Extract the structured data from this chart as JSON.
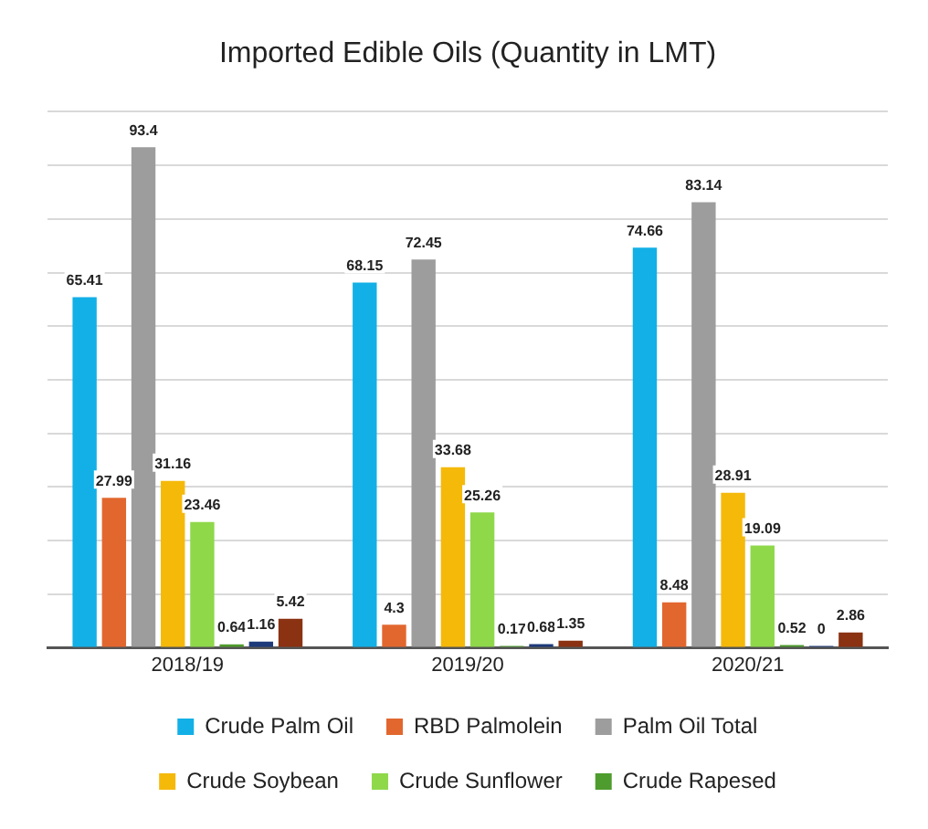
{
  "chart_data": {
    "type": "bar",
    "title": "Imported Edible Oils (Quantity in LMT)",
    "categories": [
      "2018/19",
      "2019/20",
      "2020/21"
    ],
    "series": [
      {
        "name": "Crude Palm Oil",
        "color": "#12b0e6",
        "values": [
          65.41,
          68.15,
          74.66
        ]
      },
      {
        "name": "RBD Palmolein",
        "color": "#e2672f",
        "values": [
          27.99,
          4.3,
          8.48
        ]
      },
      {
        "name": "Palm Oil Total",
        "color": "#9d9d9d",
        "values": [
          93.4,
          72.45,
          83.14
        ]
      },
      {
        "name": "Crude Soybean",
        "color": "#f5b90a",
        "values": [
          31.16,
          33.68,
          28.91
        ]
      },
      {
        "name": "Crude Sunflower",
        "color": "#8fd84a",
        "values": [
          23.46,
          25.26,
          19.09
        ]
      },
      {
        "name": "Crude Rapesed",
        "color": "#4e9c2e",
        "values": [
          0.64,
          0.17,
          0.52
        ]
      },
      {
        "color": "#1d3a7a",
        "values": [
          1.16,
          0.68,
          0
        ]
      },
      {
        "color": "#8a3212",
        "values": [
          5.42,
          1.35,
          2.86
        ]
      }
    ],
    "ylim": [
      0,
      100
    ],
    "yticks": [
      {
        "value": 0,
        "label": null
      },
      {
        "value": 10,
        "label": null
      },
      {
        "value": 20,
        "label": null
      },
      {
        "value": 30,
        "label": null
      },
      {
        "value": 40,
        "label": null
      },
      {
        "value": 50,
        "label": null
      },
      {
        "value": 60,
        "label": null
      },
      {
        "value": 70,
        "label": null
      },
      {
        "value": 80,
        "label": null
      },
      {
        "value": 90,
        "label": null
      },
      {
        "value": 100,
        "label": null
      }
    ],
    "tick_labels": "x",
    "grid": "y",
    "legend": "bottom",
    "data_labels": true
  }
}
